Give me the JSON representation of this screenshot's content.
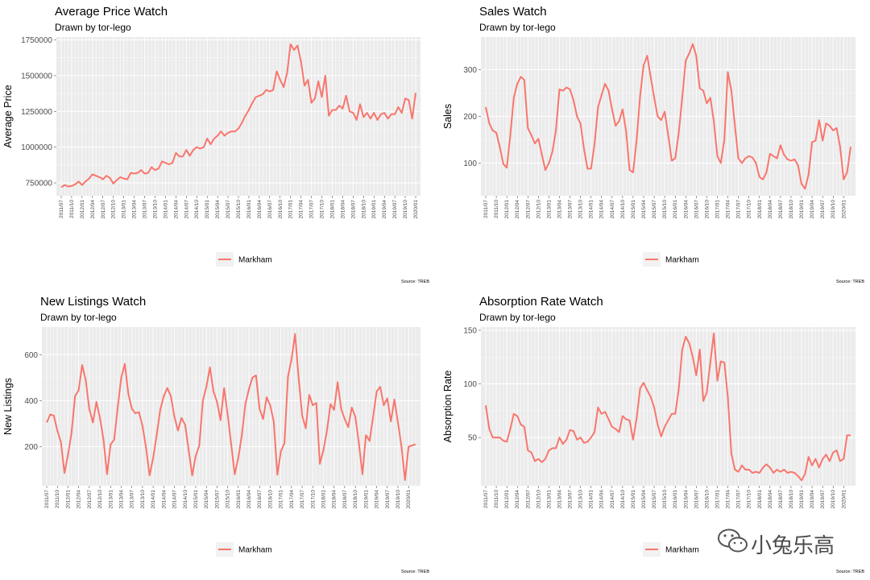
{
  "chart_data": [
    {
      "type": "line",
      "title": "Average Price Watch",
      "subtitle": "Drawn by tor-lego",
      "xlabel": "",
      "ylabel": "Average Price",
      "ylim": [
        660000,
        1770000
      ],
      "yticks": [
        750000,
        1000000,
        1250000,
        1500000,
        1750000
      ],
      "ytick_labels": [
        "750000",
        "1000000",
        "1250000",
        "1500000",
        "1750000"
      ],
      "source": "Source: TREB",
      "series": [
        {
          "name": "Markham",
          "color": "#F8766D",
          "values": [
            720000,
            735000,
            725000,
            728000,
            740000,
            760000,
            735000,
            760000,
            780000,
            810000,
            800000,
            790000,
            775000,
            800000,
            785000,
            745000,
            770000,
            790000,
            780000,
            775000,
            820000,
            815000,
            820000,
            840000,
            815000,
            820000,
            860000,
            840000,
            850000,
            900000,
            890000,
            880000,
            890000,
            960000,
            935000,
            935000,
            980000,
            940000,
            980000,
            1000000,
            990000,
            1000000,
            1060000,
            1020000,
            1060000,
            1080000,
            1110000,
            1080000,
            1100000,
            1110000,
            1110000,
            1130000,
            1170000,
            1220000,
            1260000,
            1310000,
            1350000,
            1360000,
            1370000,
            1400000,
            1390000,
            1400000,
            1530000,
            1470000,
            1420000,
            1520000,
            1720000,
            1680000,
            1710000,
            1600000,
            1430000,
            1470000,
            1310000,
            1340000,
            1460000,
            1350000,
            1500000,
            1220000,
            1260000,
            1260000,
            1290000,
            1270000,
            1360000,
            1250000,
            1240000,
            1190000,
            1300000,
            1210000,
            1240000,
            1200000,
            1240000,
            1190000,
            1230000,
            1240000,
            1200000,
            1230000,
            1230000,
            1280000,
            1240000,
            1340000,
            1330000,
            1200000,
            1380000
          ]
        }
      ],
      "x_start": "2011/07",
      "x_tick_labels": [
        "2011/07",
        "2011/10",
        "2012/01",
        "2012/04",
        "2012/07",
        "2012/10",
        "2013/01",
        "2013/04",
        "2013/07",
        "2013/10",
        "2014/01",
        "2014/04",
        "2014/07",
        "2014/10",
        "2015/01",
        "2015/04",
        "2015/07",
        "2015/10",
        "2016/01",
        "2016/04",
        "2016/07",
        "2016/10",
        "2017/01",
        "2017/04",
        "2017/07",
        "2017/10",
        "2018/01",
        "2018/04",
        "2018/07",
        "2018/10",
        "2019/01",
        "2019/04",
        "2019/07",
        "2019/10",
        "2020/01"
      ],
      "legend": {
        "position": "bottom",
        "entries": [
          "Markham"
        ]
      },
      "grid": true
    },
    {
      "type": "line",
      "title": "Sales Watch",
      "subtitle": "Drawn by tor-lego",
      "xlabel": "",
      "ylabel": "Sales",
      "ylim": [
        30,
        370
      ],
      "yticks": [
        100,
        200,
        300
      ],
      "ytick_labels": [
        "100",
        "200",
        "300"
      ],
      "source": "Source: TREB",
      "series": [
        {
          "name": "Markham",
          "color": "#F8766D",
          "values": [
            220,
            185,
            170,
            165,
            135,
            98,
            90,
            160,
            240,
            270,
            285,
            278,
            175,
            160,
            142,
            152,
            118,
            85,
            100,
            125,
            170,
            258,
            255,
            262,
            258,
            235,
            200,
            185,
            130,
            88,
            88,
            140,
            220,
            245,
            270,
            255,
            215,
            180,
            190,
            215,
            168,
            85,
            80,
            150,
            245,
            310,
            330,
            285,
            240,
            200,
            192,
            210,
            160,
            105,
            110,
            165,
            240,
            320,
            335,
            355,
            330,
            260,
            255,
            228,
            240,
            190,
            115,
            100,
            150,
            295,
            255,
            180,
            110,
            100,
            110,
            115,
            112,
            100,
            70,
            65,
            80,
            120,
            115,
            110,
            138,
            118,
            108,
            105,
            108,
            95,
            55,
            45,
            75,
            145,
            148,
            192,
            148,
            185,
            180,
            170,
            175,
            135,
            65,
            80,
            135
          ]
        }
      ],
      "x_start": "2011/07",
      "x_tick_labels": [
        "2011/07",
        "2011/10",
        "2012/01",
        "2012/04",
        "2012/07",
        "2012/10",
        "2013/01",
        "2013/04",
        "2013/07",
        "2013/10",
        "2014/01",
        "2014/04",
        "2014/07",
        "2014/10",
        "2015/01",
        "2015/04",
        "2015/07",
        "2015/10",
        "2016/01",
        "2016/04",
        "2016/07",
        "2016/10",
        "2017/01",
        "2017/04",
        "2017/07",
        "2017/10",
        "2018/01",
        "2018/04",
        "2018/07",
        "2018/10",
        "2019/01",
        "2019/04",
        "2019/07",
        "2019/10",
        "2020/01"
      ],
      "legend": {
        "position": "bottom",
        "entries": [
          "Markham"
        ]
      },
      "grid": true
    },
    {
      "type": "line",
      "title": "New Listings Watch",
      "subtitle": "Drawn by tor-lego",
      "xlabel": "",
      "ylabel": "New Listings",
      "ylim": [
        30,
        720
      ],
      "yticks": [
        200,
        400,
        600
      ],
      "ytick_labels": [
        "200",
        "400",
        "600"
      ],
      "source": "Source: TREB",
      "series": [
        {
          "name": "Markham",
          "color": "#F8766D",
          "values": [
            305,
            340,
            335,
            270,
            220,
            85,
            165,
            260,
            420,
            445,
            555,
            490,
            365,
            305,
            395,
            325,
            230,
            80,
            210,
            230,
            370,
            500,
            560,
            430,
            365,
            345,
            350,
            290,
            195,
            75,
            150,
            250,
            360,
            420,
            455,
            420,
            330,
            270,
            325,
            295,
            185,
            75,
            160,
            205,
            400,
            460,
            545,
            440,
            395,
            315,
            455,
            340,
            210,
            80,
            150,
            250,
            385,
            450,
            500,
            510,
            365,
            320,
            415,
            380,
            310,
            78,
            180,
            215,
            505,
            580,
            690,
            500,
            335,
            280,
            425,
            380,
            390,
            125,
            185,
            270,
            385,
            360,
            480,
            365,
            320,
            285,
            370,
            330,
            215,
            80,
            250,
            225,
            330,
            440,
            460,
            380,
            410,
            310,
            405,
            305,
            200,
            55,
            200,
            205,
            210
          ]
        }
      ],
      "x_start": "2011/07",
      "x_tick_labels": [
        "2011/07",
        "2011/10",
        "2012/01",
        "2012/04",
        "2012/07",
        "2012/10",
        "2013/01",
        "2013/04",
        "2013/07",
        "2013/10",
        "2014/01",
        "2014/04",
        "2014/07",
        "2014/10",
        "2015/01",
        "2015/04",
        "2015/07",
        "2015/10",
        "2016/01",
        "2016/04",
        "2016/07",
        "2016/10",
        "2017/01",
        "2017/04",
        "2017/07",
        "2017/10",
        "2018/01",
        "2018/04",
        "2018/07",
        "2018/10",
        "2019/01",
        "2019/04",
        "2019/07",
        "2019/10",
        "2020/01"
      ],
      "legend": {
        "position": "bottom",
        "entries": [
          "Markham"
        ]
      },
      "grid": true
    },
    {
      "type": "line",
      "title": "Absorption Rate Watch",
      "subtitle": "Drawn by tor-lego",
      "xlabel": "",
      "ylabel": "Absorption Rate",
      "ylim": [
        5,
        153
      ],
      "yticks": [
        50,
        100,
        150
      ],
      "ytick_labels": [
        "50",
        "100",
        "150"
      ],
      "source": "Source: TREB",
      "series": [
        {
          "name": "Markham",
          "color": "#F8766D",
          "values": [
            80,
            58,
            50,
            50,
            50,
            47,
            46,
            58,
            72,
            70,
            62,
            60,
            38,
            36,
            28,
            30,
            27,
            30,
            38,
            40,
            40,
            50,
            44,
            48,
            57,
            56,
            48,
            50,
            45,
            46,
            50,
            55,
            78,
            72,
            74,
            67,
            60,
            58,
            55,
            70,
            67,
            66,
            48,
            68,
            96,
            101,
            94,
            88,
            78,
            62,
            51,
            60,
            66,
            72,
            72,
            95,
            132,
            144,
            138,
            125,
            108,
            132,
            84,
            92,
            120,
            147,
            103,
            121,
            120,
            88,
            35,
            20,
            18,
            24,
            20,
            20,
            17,
            18,
            17,
            22,
            25,
            22,
            17,
            20,
            18,
            20,
            17,
            18,
            17,
            14,
            10,
            16,
            32,
            24,
            30,
            22,
            30,
            34,
            28,
            36,
            38,
            28,
            30,
            52,
            52
          ]
        }
      ],
      "x_start": "2011/07",
      "x_tick_labels": [
        "2011/07",
        "2011/10",
        "2012/01",
        "2012/04",
        "2012/07",
        "2012/10",
        "2013/01",
        "2013/04",
        "2013/07",
        "2013/10",
        "2014/01",
        "2014/04",
        "2014/07",
        "2014/10",
        "2015/01",
        "2015/04",
        "2015/07",
        "2015/10",
        "2016/01",
        "2016/04",
        "2016/07",
        "2016/10",
        "2017/01",
        "2017/04",
        "2017/07",
        "2017/10",
        "2018/01",
        "2018/04",
        "2018/07",
        "2018/10",
        "2019/01",
        "2019/04",
        "2019/07",
        "2019/10",
        "2020/01"
      ],
      "legend": {
        "position": "bottom",
        "entries": [
          "Markham"
        ]
      },
      "grid": true
    }
  ],
  "watermark": {
    "text": "小兔乐高",
    "icon": "wechat-icon"
  }
}
